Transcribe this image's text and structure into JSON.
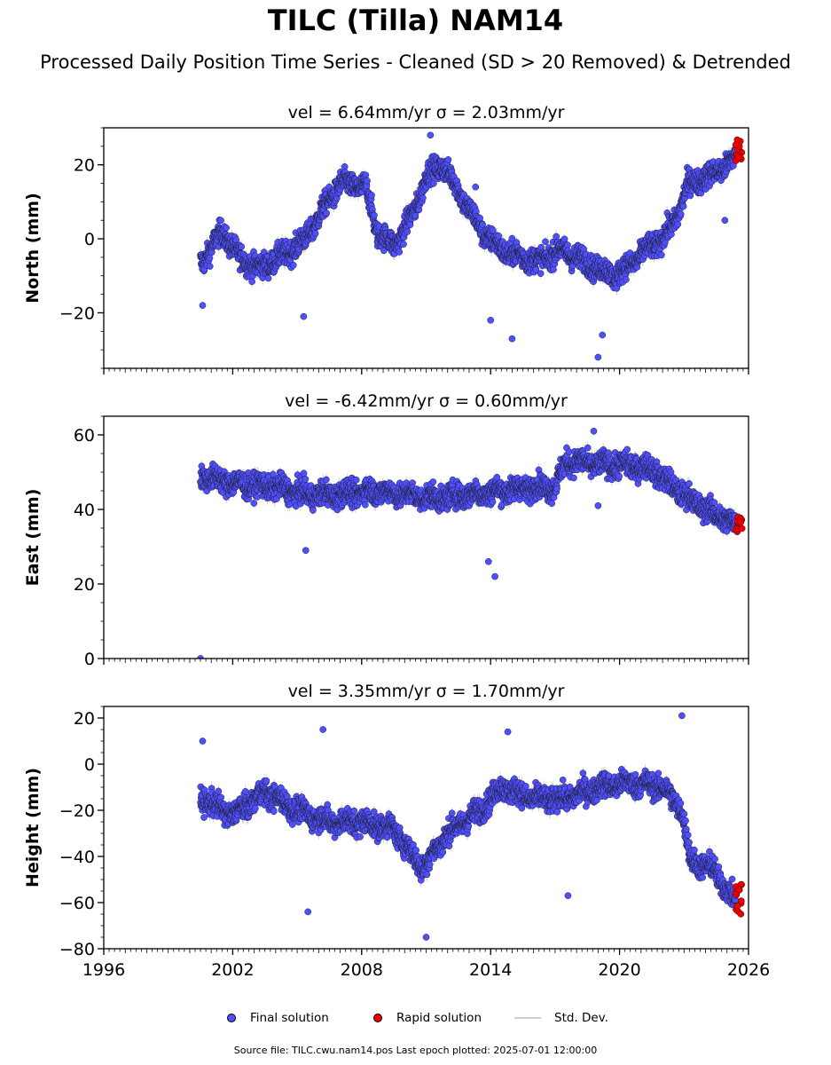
{
  "title": "TILC (Tilla) NAM14",
  "subtitle": "Processed Daily Position Time Series - Cleaned (SD > 20 Removed) & Detrended",
  "legend": {
    "final": "Final solution",
    "rapid": "Rapid solution",
    "sd": "Std. Dev."
  },
  "footer": "Source file: TILC.cwu.nam14.pos  Last epoch plotted: 2025-07-01 12:00:00",
  "colors": {
    "final": "#4f4fff",
    "rapid": "#ee0000",
    "sd": "#c8c8c8"
  },
  "chart_data": [
    {
      "type": "scatter",
      "title": "vel = 6.64mm/yr   σ = 2.03mm/yr",
      "ylabel": "North (mm)",
      "xlim": [
        1996,
        2026
      ],
      "ylim": [
        -35,
        30
      ],
      "yticks": [
        "−20",
        "0",
        "20"
      ],
      "ytick_values": [
        -20,
        0,
        20
      ],
      "x_tick_labels": false,
      "series": [
        {
          "name": "Final solution",
          "x_start": 2000.5,
          "x_end": 2025.4,
          "trend_points": [
            [
              2000.6,
              -6
            ],
            [
              2001.5,
              2
            ],
            [
              2002.3,
              -5
            ],
            [
              2003.2,
              -8
            ],
            [
              2004.5,
              -4
            ],
            [
              2005.4,
              0
            ],
            [
              2006.2,
              8
            ],
            [
              2007.0,
              15
            ],
            [
              2008.2,
              14
            ],
            [
              2008.7,
              2
            ],
            [
              2009.5,
              -2
            ],
            [
              2010.5,
              8
            ],
            [
              2011.0,
              17
            ],
            [
              2011.8,
              20
            ],
            [
              2012.8,
              10
            ],
            [
              2013.6,
              2
            ],
            [
              2014.5,
              -3
            ],
            [
              2015.5,
              -5
            ],
            [
              2016.3,
              -6
            ],
            [
              2017.2,
              -3
            ],
            [
              2018.0,
              -5
            ],
            [
              2019.0,
              -8
            ],
            [
              2019.8,
              -10
            ],
            [
              2020.5,
              -7
            ],
            [
              2021.2,
              -3
            ],
            [
              2022.0,
              0
            ],
            [
              2022.6,
              5
            ],
            [
              2023.2,
              15
            ],
            [
              2024.2,
              17
            ],
            [
              2025.0,
              20
            ],
            [
              2025.4,
              22
            ]
          ],
          "outliers": [
            [
              2000.6,
              -18
            ],
            [
              2005.3,
              -21
            ],
            [
              2014.0,
              -22
            ],
            [
              2015.0,
              -27
            ],
            [
              2019.0,
              -32
            ],
            [
              2019.2,
              -26
            ],
            [
              2011.2,
              28
            ],
            [
              2013.3,
              14
            ],
            [
              2024.9,
              5
            ]
          ]
        },
        {
          "name": "Rapid solution",
          "x": [
            2025.4,
            2025.7
          ],
          "y_range": [
            21,
            27
          ]
        }
      ]
    },
    {
      "type": "scatter",
      "title": "vel = -6.42mm/yr   σ = 0.60mm/yr",
      "ylabel": "East (mm)",
      "xlim": [
        1996,
        2026
      ],
      "ylim": [
        0,
        65
      ],
      "yticks": [
        "0",
        "20",
        "40",
        "60"
      ],
      "ytick_values": [
        0,
        20,
        40,
        60
      ],
      "x_tick_labels": false,
      "series": [
        {
          "name": "Final solution",
          "x_start": 2000.5,
          "x_end": 2025.4,
          "trend_points": [
            [
              2000.6,
              49
            ],
            [
              2002.0,
              47
            ],
            [
              2004.0,
              46
            ],
            [
              2005.5,
              44
            ],
            [
              2007.0,
              44
            ],
            [
              2008.5,
              45
            ],
            [
              2010.0,
              44
            ],
            [
              2011.5,
              43
            ],
            [
              2013.0,
              44
            ],
            [
              2014.5,
              45
            ],
            [
              2016.0,
              46
            ],
            [
              2017.0,
              46
            ],
            [
              2017.5,
              53
            ],
            [
              2019.0,
              52
            ],
            [
              2020.0,
              52
            ],
            [
              2021.5,
              51
            ],
            [
              2022.5,
              46
            ],
            [
              2024.0,
              40
            ],
            [
              2025.4,
              36
            ]
          ],
          "outliers": [
            [
              2000.5,
              0
            ],
            [
              2013.9,
              26
            ],
            [
              2014.2,
              22
            ],
            [
              2005.4,
              29
            ],
            [
              2018.8,
              61
            ],
            [
              2019.0,
              41
            ]
          ]
        },
        {
          "name": "Rapid solution",
          "x": [
            2025.4,
            2025.7
          ],
          "y_range": [
            34,
            38
          ]
        }
      ]
    },
    {
      "type": "scatter",
      "title": "vel = 3.35mm/yr   σ = 1.70mm/yr",
      "ylabel": "Height (mm)",
      "xlim": [
        1996,
        2026
      ],
      "ylim": [
        -80,
        25
      ],
      "yticks": [
        "−80",
        "−60",
        "−40",
        "−20",
        "0",
        "20"
      ],
      "ytick_values": [
        -80,
        -60,
        -40,
        -20,
        0,
        20
      ],
      "x_tick_labels": true,
      "xticks": [
        "1996",
        "2002",
        "2008",
        "2014",
        "2020",
        "2026"
      ],
      "xtick_values": [
        1996,
        2002,
        2008,
        2014,
        2020,
        2026
      ],
      "series": [
        {
          "name": "Final solution",
          "x_start": 2000.5,
          "x_end": 2025.4,
          "trend_points": [
            [
              2000.6,
              -15
            ],
            [
              2002.0,
              -22
            ],
            [
              2003.5,
              -12
            ],
            [
              2005.0,
              -20
            ],
            [
              2006.5,
              -25
            ],
            [
              2008.0,
              -25
            ],
            [
              2009.5,
              -28
            ],
            [
              2010.8,
              -45
            ],
            [
              2012.0,
              -30
            ],
            [
              2013.5,
              -20
            ],
            [
              2014.5,
              -10
            ],
            [
              2016.0,
              -15
            ],
            [
              2017.5,
              -15
            ],
            [
              2019.0,
              -10
            ],
            [
              2020.5,
              -8
            ],
            [
              2022.0,
              -10
            ],
            [
              2022.9,
              -20
            ],
            [
              2023.3,
              -42
            ],
            [
              2024.3,
              -45
            ],
            [
              2025.4,
              -60
            ]
          ],
          "outliers": [
            [
              2011.0,
              -75
            ],
            [
              2000.6,
              10
            ],
            [
              2006.2,
              15
            ],
            [
              2014.8,
              14
            ],
            [
              2022.9,
              21
            ],
            [
              2005.5,
              -64
            ],
            [
              2017.6,
              -57
            ]
          ]
        },
        {
          "name": "Rapid solution",
          "x": [
            2025.4,
            2025.7
          ],
          "y_range": [
            -65,
            -52
          ]
        }
      ]
    }
  ]
}
